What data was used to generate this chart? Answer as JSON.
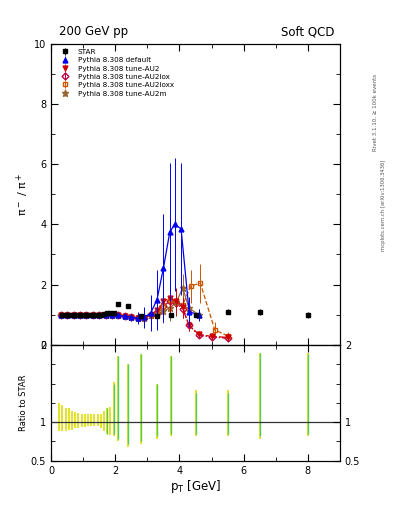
{
  "title_left": "200 GeV pp",
  "title_right": "Soft QCD",
  "ylabel_main": "pi^- / pi^+",
  "ylabel_ratio": "Ratio to STAR",
  "xlabel": "p_{T} [GeV]",
  "right_label_top": "Rivet 3.1.10, ≥ 100k events",
  "right_label_bot": "mcplots.cern.ch [arXiv:1306.3436]",
  "xlim": [
    0,
    9
  ],
  "ylim_main": [
    0,
    10
  ],
  "ylim_ratio": [
    0.5,
    2.0
  ],
  "star_x": [
    0.35,
    0.45,
    0.55,
    0.65,
    0.75,
    0.85,
    0.95,
    1.05,
    1.15,
    1.25,
    1.35,
    1.45,
    1.55,
    1.65,
    1.75,
    1.85,
    1.95,
    2.1,
    2.4,
    2.8,
    3.3,
    3.75,
    4.5,
    5.5,
    6.5,
    8.0
  ],
  "star_y": [
    1.0,
    1.0,
    1.0,
    1.0,
    1.0,
    1.0,
    1.0,
    1.0,
    1.0,
    1.0,
    1.0,
    1.0,
    1.0,
    1.02,
    1.05,
    1.05,
    1.05,
    1.35,
    1.3,
    0.95,
    0.95,
    1.0,
    1.0,
    1.1,
    1.1,
    1.0
  ],
  "star_yerr": [
    0.04,
    0.04,
    0.04,
    0.04,
    0.04,
    0.04,
    0.04,
    0.04,
    0.04,
    0.04,
    0.04,
    0.04,
    0.04,
    0.04,
    0.05,
    0.05,
    0.05,
    0.07,
    0.07,
    0.06,
    0.06,
    0.06,
    0.06,
    0.08,
    0.1,
    0.1
  ],
  "pythia_default_x": [
    0.3,
    0.5,
    0.7,
    0.9,
    1.1,
    1.3,
    1.5,
    1.7,
    1.9,
    2.1,
    2.3,
    2.5,
    2.7,
    2.9,
    3.1,
    3.3,
    3.5,
    3.7,
    3.85,
    4.05,
    4.3,
    4.6
  ],
  "pythia_default_y": [
    1.0,
    1.0,
    1.0,
    1.0,
    1.0,
    1.0,
    1.0,
    1.0,
    0.98,
    0.98,
    0.95,
    0.92,
    0.88,
    0.92,
    1.05,
    1.5,
    2.55,
    3.75,
    4.0,
    3.85,
    1.1,
    1.0
  ],
  "pythia_default_yerr": [
    0.02,
    0.02,
    0.02,
    0.02,
    0.02,
    0.02,
    0.02,
    0.02,
    0.02,
    0.05,
    0.08,
    0.12,
    0.2,
    0.35,
    0.6,
    1.0,
    1.8,
    2.3,
    2.2,
    2.2,
    0.5,
    0.2
  ],
  "pythia_au2_x": [
    0.3,
    0.5,
    0.7,
    0.9,
    1.1,
    1.3,
    1.5,
    1.7,
    1.9,
    2.1,
    2.3,
    2.5,
    2.7,
    2.9,
    3.1,
    3.3,
    3.5,
    3.7,
    3.9,
    4.1,
    4.3,
    4.6,
    5.0,
    5.5
  ],
  "pythia_au2_y": [
    1.0,
    1.0,
    1.0,
    1.0,
    1.0,
    1.0,
    1.0,
    1.0,
    0.98,
    0.98,
    0.95,
    0.92,
    0.88,
    0.9,
    1.0,
    1.15,
    1.45,
    1.55,
    1.45,
    1.25,
    0.65,
    0.35,
    0.28,
    0.25
  ],
  "pythia_au2_yerr": [
    0.02,
    0.02,
    0.02,
    0.02,
    0.02,
    0.02,
    0.02,
    0.02,
    0.02,
    0.05,
    0.08,
    0.1,
    0.15,
    0.25,
    0.35,
    0.45,
    0.5,
    0.5,
    0.45,
    0.35,
    0.2,
    0.1,
    0.1,
    0.1
  ],
  "pythia_au2lox_x": [
    0.3,
    0.5,
    0.7,
    0.9,
    1.1,
    1.3,
    1.5,
    1.7,
    1.9,
    2.1,
    2.3,
    2.5,
    2.7,
    2.9,
    3.1,
    3.3,
    3.5,
    3.7,
    3.9,
    4.1,
    4.3,
    4.6,
    5.0,
    5.5
  ],
  "pythia_au2lox_y": [
    1.0,
    1.0,
    1.0,
    1.0,
    1.0,
    1.0,
    1.0,
    1.0,
    0.98,
    0.98,
    0.95,
    0.92,
    0.88,
    0.88,
    0.98,
    1.05,
    1.28,
    1.45,
    1.38,
    1.2,
    0.65,
    0.32,
    0.26,
    0.22
  ],
  "pythia_au2lox_yerr": [
    0.02,
    0.02,
    0.02,
    0.02,
    0.02,
    0.02,
    0.02,
    0.02,
    0.02,
    0.05,
    0.08,
    0.1,
    0.15,
    0.22,
    0.32,
    0.4,
    0.48,
    0.48,
    0.42,
    0.3,
    0.18,
    0.1,
    0.1,
    0.08
  ],
  "pythia_au2loxx_x": [
    0.3,
    0.5,
    0.7,
    0.9,
    1.1,
    1.3,
    1.5,
    1.7,
    1.9,
    2.1,
    2.3,
    2.5,
    2.7,
    2.9,
    3.1,
    3.3,
    3.5,
    3.7,
    3.9,
    4.1,
    4.35,
    4.65,
    5.1,
    5.5
  ],
  "pythia_au2loxx_y": [
    1.0,
    1.0,
    1.0,
    1.0,
    1.0,
    1.0,
    1.0,
    1.0,
    0.98,
    0.98,
    0.95,
    0.92,
    0.88,
    0.9,
    0.98,
    1.05,
    1.3,
    1.48,
    1.42,
    1.32,
    1.95,
    2.05,
    0.5,
    0.3
  ],
  "pythia_au2loxx_yerr": [
    0.02,
    0.02,
    0.02,
    0.02,
    0.02,
    0.02,
    0.02,
    0.02,
    0.02,
    0.05,
    0.08,
    0.1,
    0.15,
    0.22,
    0.32,
    0.4,
    0.48,
    0.5,
    0.45,
    0.38,
    0.55,
    0.65,
    0.25,
    0.12
  ],
  "pythia_au2m_x": [
    0.3,
    0.5,
    0.7,
    0.9,
    1.1,
    1.3,
    1.5,
    1.7,
    1.9,
    2.1,
    2.3,
    2.5,
    2.7,
    2.9,
    3.1,
    3.3,
    3.5,
    3.7,
    3.9,
    4.1,
    4.3,
    4.6
  ],
  "pythia_au2m_y": [
    1.0,
    1.0,
    1.0,
    1.0,
    1.0,
    1.0,
    1.0,
    1.0,
    0.98,
    0.98,
    0.95,
    0.92,
    0.88,
    0.9,
    0.98,
    1.02,
    1.12,
    1.22,
    1.42,
    1.88,
    1.22,
    1.0
  ],
  "pythia_au2m_yerr": [
    0.02,
    0.02,
    0.02,
    0.02,
    0.02,
    0.02,
    0.02,
    0.02,
    0.02,
    0.05,
    0.08,
    0.1,
    0.15,
    0.22,
    0.32,
    0.38,
    0.4,
    0.42,
    0.45,
    0.48,
    0.32,
    0.18
  ],
  "color_default": "#0000ee",
  "color_au2": "#cc0000",
  "color_au2lox": "#bb0044",
  "color_au2loxx": "#cc5500",
  "color_au2m": "#996633",
  "ratio_yellow_x": [
    0.25,
    0.35,
    0.45,
    0.55,
    0.65,
    0.75,
    0.85,
    0.95,
    1.05,
    1.15,
    1.25,
    1.35,
    1.45,
    1.55,
    1.65,
    1.75,
    1.85,
    1.95,
    2.1,
    2.4,
    2.8,
    3.3,
    3.75,
    4.5,
    5.5,
    6.5,
    8.0
  ],
  "ratio_yellow_lo": [
    0.88,
    0.88,
    0.88,
    0.9,
    0.9,
    0.92,
    0.92,
    0.94,
    0.94,
    0.95,
    0.95,
    0.95,
    0.95,
    0.93,
    0.88,
    0.85,
    0.83,
    0.82,
    0.75,
    0.68,
    0.72,
    0.78,
    0.82,
    0.82,
    0.82,
    0.78,
    0.82
  ],
  "ratio_yellow_hi": [
    1.25,
    1.22,
    1.18,
    1.18,
    1.15,
    1.13,
    1.12,
    1.1,
    1.1,
    1.1,
    1.1,
    1.1,
    1.1,
    1.1,
    1.15,
    1.18,
    1.2,
    1.52,
    1.85,
    1.75,
    1.88,
    1.5,
    1.85,
    1.42,
    1.42,
    1.9,
    1.9
  ],
  "ratio_green_x": [
    1.75,
    1.95,
    2.1,
    2.4,
    2.8,
    3.3,
    3.75,
    4.5,
    5.5,
    6.5,
    8.0
  ],
  "ratio_green_lo": [
    0.85,
    0.85,
    0.78,
    0.72,
    0.75,
    0.82,
    0.85,
    0.85,
    0.85,
    0.82,
    0.85
  ],
  "ratio_green_hi": [
    1.18,
    1.5,
    1.85,
    1.75,
    1.88,
    1.5,
    1.85,
    1.38,
    1.38,
    1.9,
    1.88
  ]
}
